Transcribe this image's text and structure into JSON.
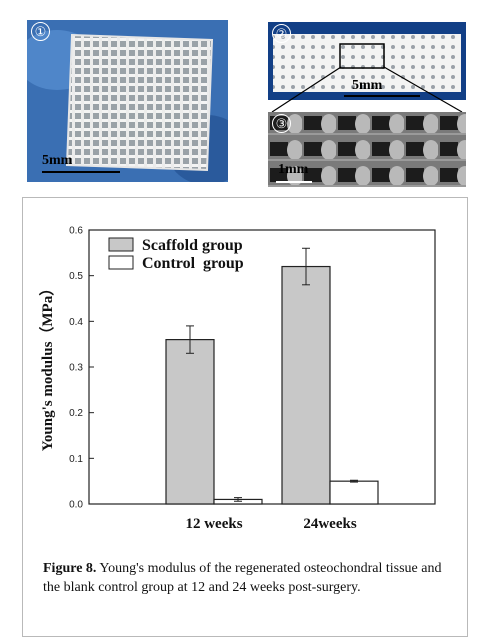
{
  "photos": {
    "panel_1": {
      "number": "①",
      "scale_label": "5mm"
    },
    "panel_2": {
      "number": "②",
      "scale_label": "5mm"
    },
    "panel_3": {
      "number": "③",
      "scale_label": "1mm"
    }
  },
  "colors": {
    "scaffold_fill": "#c8c8c8",
    "control_fill": "#ffffff",
    "photo_background_blue": "#2f63a8",
    "scaffold_white": "#f2f2f2"
  },
  "chart_data": {
    "type": "bar",
    "categories": [
      "12 weeks",
      "24weeks"
    ],
    "series": [
      {
        "name": "Scaffold group",
        "values": [
          0.36,
          0.52
        ],
        "errors": [
          0.03,
          0.04
        ],
        "color": "#c8c8c8"
      },
      {
        "name": "Control  group",
        "values": [
          0.01,
          0.05
        ],
        "errors": [
          0.004,
          0.002
        ],
        "color": "#ffffff"
      }
    ],
    "ylabel": "Young's modulus（MPa）",
    "xlabel": "",
    "ylim": [
      0,
      0.6
    ],
    "yticks": [
      "0.0",
      "0.1",
      "0.2",
      "0.3",
      "0.4",
      "0.5",
      "0.6"
    ],
    "grid": false,
    "legend_position": "top-left"
  },
  "caption": {
    "label": "Figure 8.",
    "text": " Young's modulus of the regenerated osteochondral tissue and the blank control group at 12 and 24 weeks post-surgery."
  }
}
